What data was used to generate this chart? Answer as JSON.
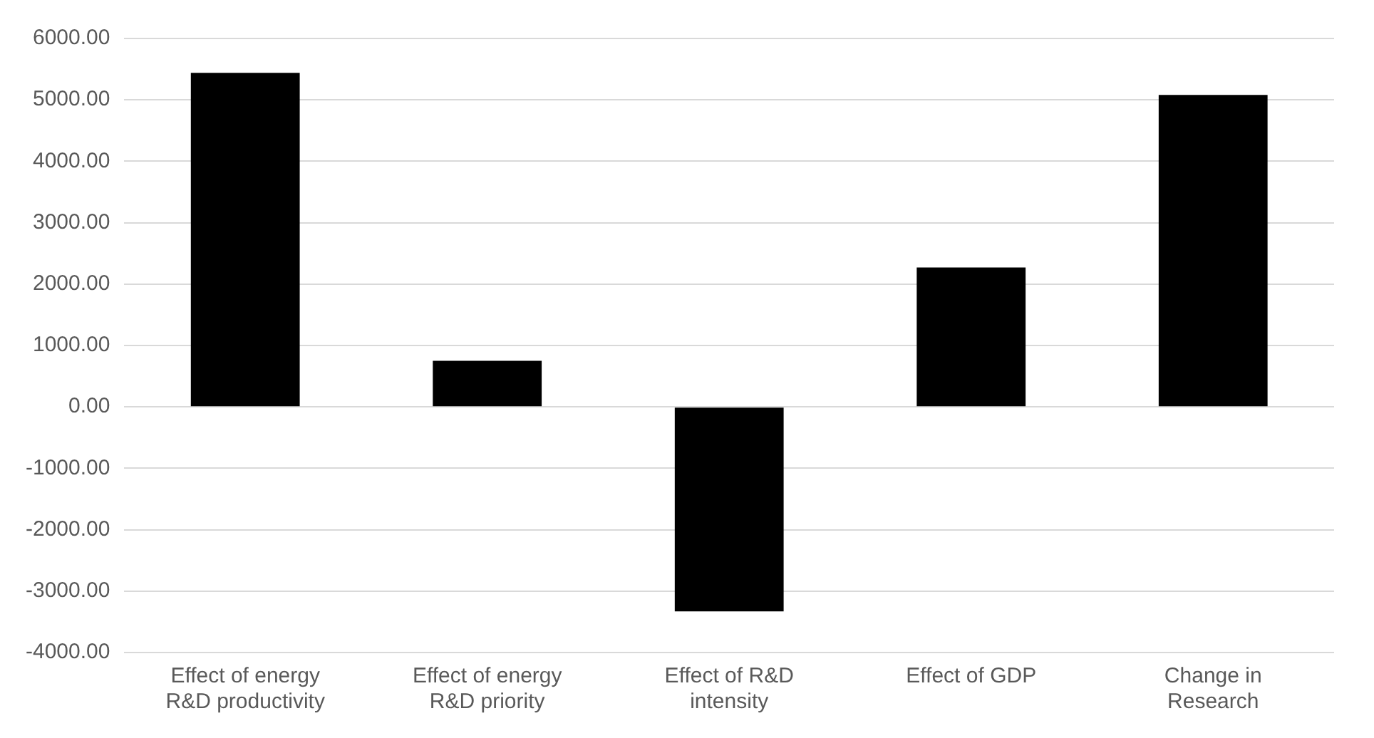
{
  "chart_data": {
    "type": "bar",
    "categories": [
      "Effect of energy R&D productivity",
      "Effect of energy R&D priority",
      "Effect of R&D intensity",
      "Effect of GDP",
      "Change in Research"
    ],
    "values": [
      5440,
      750,
      -3330,
      2270,
      5080
    ],
    "color": "#000000",
    "ylim": [
      -4000,
      6000
    ],
    "yticks": [
      {
        "value": -4000,
        "label": "-4000.00"
      },
      {
        "value": -3000,
        "label": "-3000.00"
      },
      {
        "value": -2000,
        "label": "-2000.00"
      },
      {
        "value": -1000,
        "label": "-1000.00"
      },
      {
        "value": 0,
        "label": "0.00"
      },
      {
        "value": 1000,
        "label": "1000.00"
      },
      {
        "value": 2000,
        "label": "2000.00"
      },
      {
        "value": 3000,
        "label": "3000.00"
      },
      {
        "value": 4000,
        "label": "4000.00"
      },
      {
        "value": 5000,
        "label": "5000.00"
      },
      {
        "value": 6000,
        "label": "6000.00"
      }
    ],
    "grid": "y"
  }
}
